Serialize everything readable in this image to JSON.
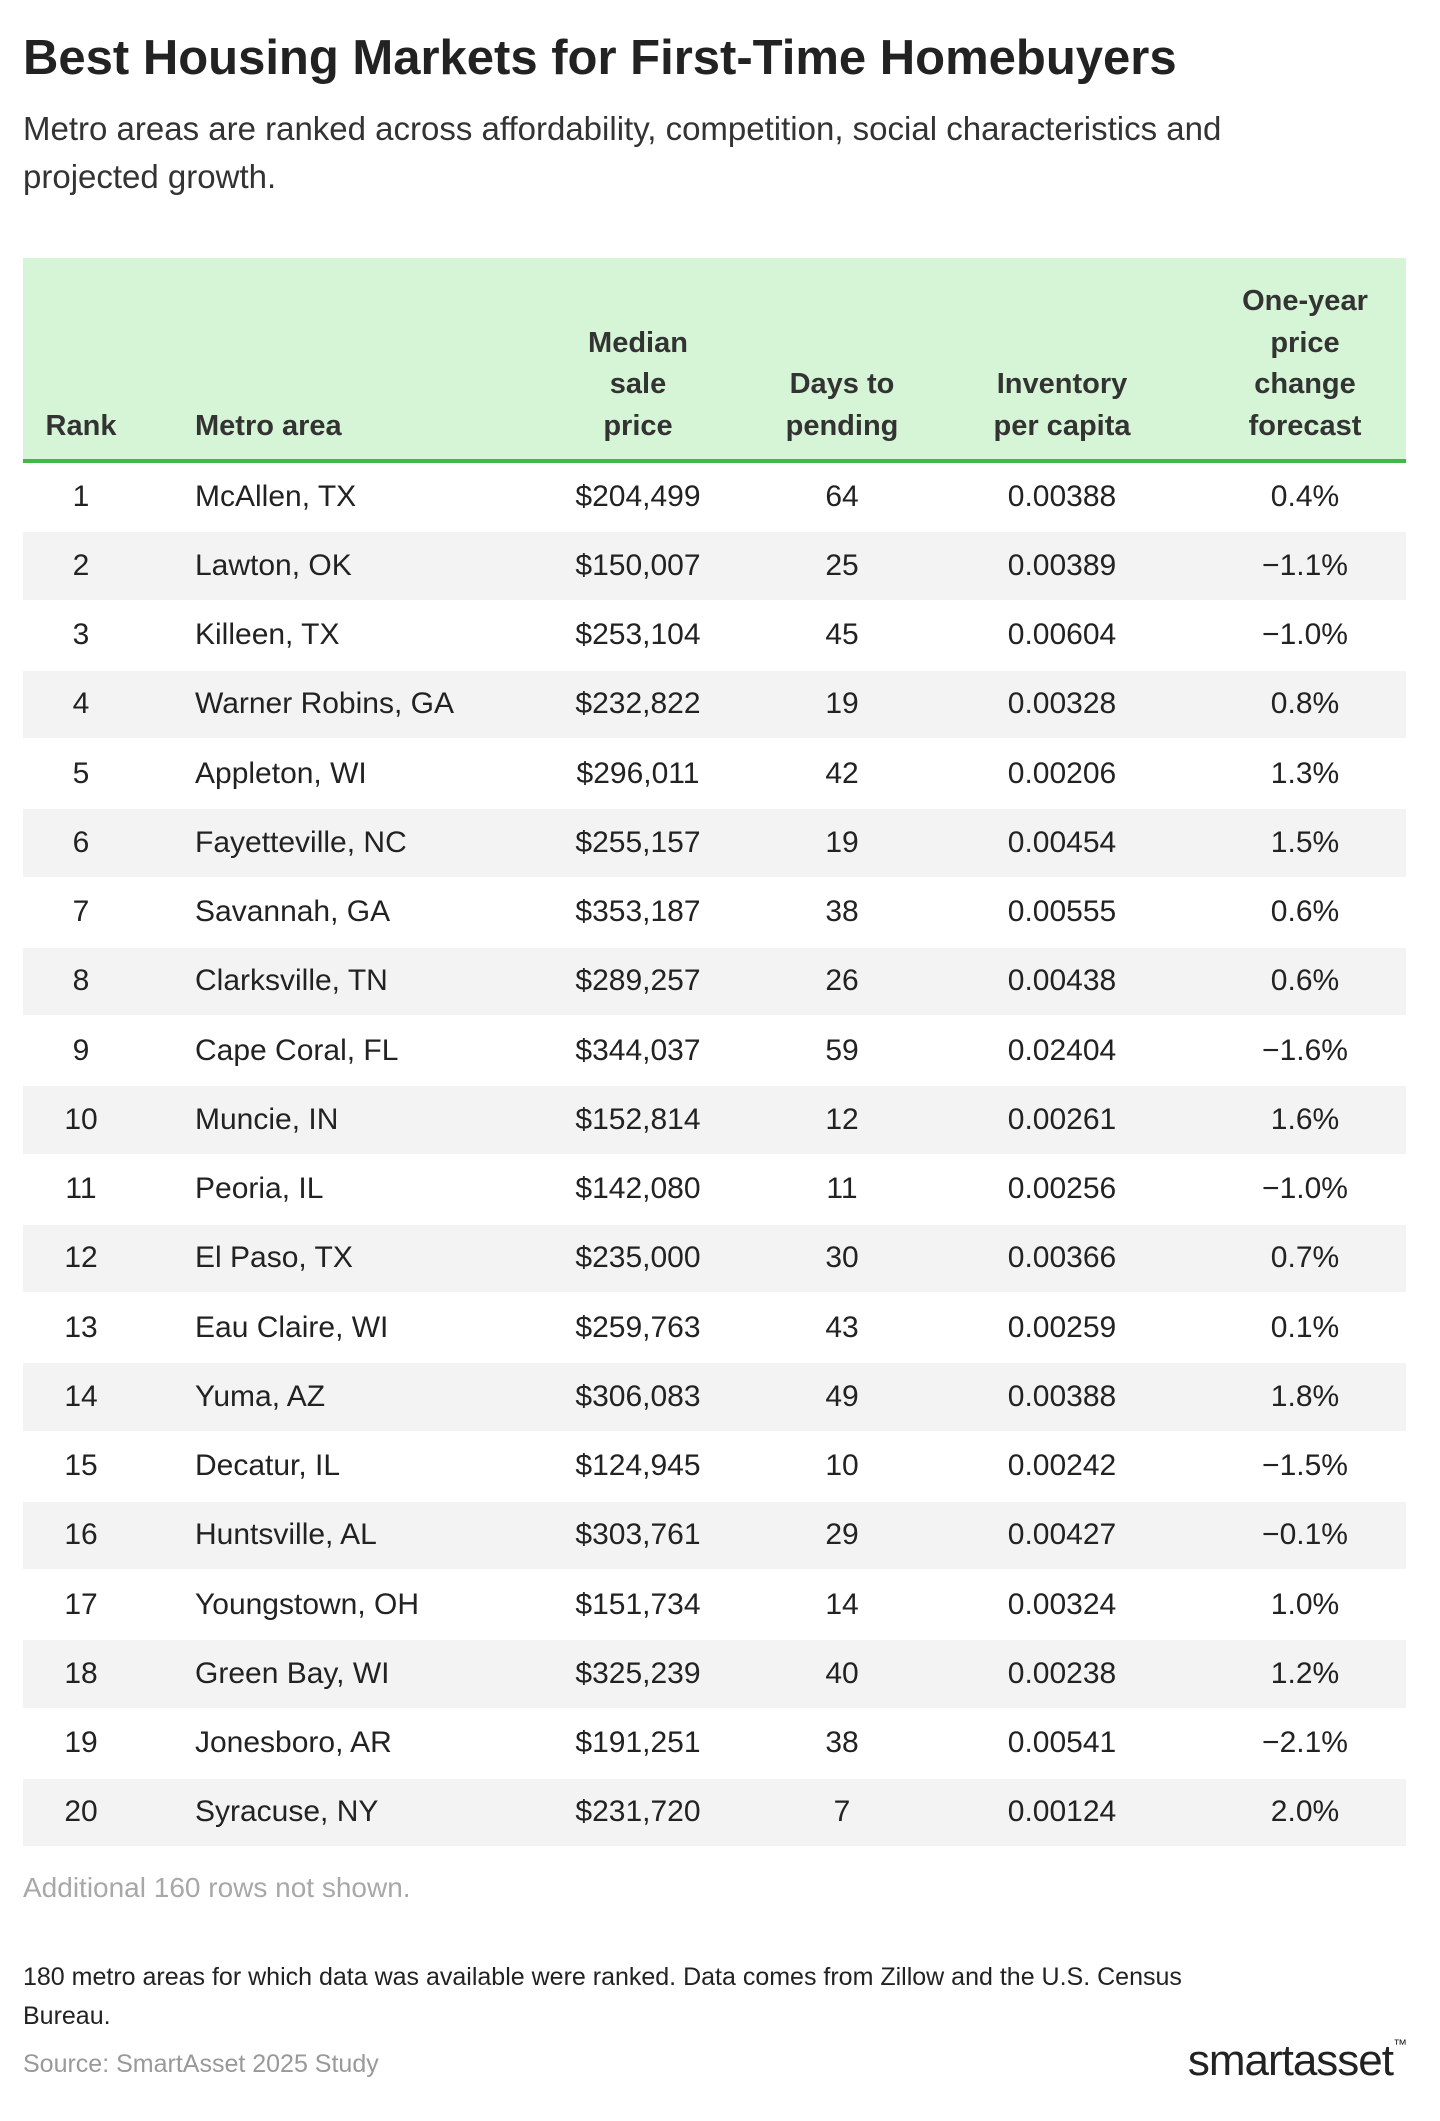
{
  "header": {
    "title": "Best Housing Markets for First-Time Homebuyers",
    "subtitle": "Metro areas are ranked across affordability, competition, social characteristics and projected growth."
  },
  "table": {
    "headers": [
      [
        "Rank"
      ],
      [
        "Metro area"
      ],
      [
        "Median",
        "sale",
        "price"
      ],
      [
        "Days to",
        "pending"
      ],
      [
        "Inventory",
        "per capita"
      ],
      [
        "One-year",
        "price",
        "change",
        "forecast"
      ]
    ],
    "rows": [
      [
        "1",
        "McAllen, TX",
        "$204,499",
        "64",
        "0.00388",
        "0.4%"
      ],
      [
        "2",
        "Lawton, OK",
        "$150,007",
        "25",
        "0.00389",
        "−1.1%"
      ],
      [
        "3",
        "Killeen, TX",
        "$253,104",
        "45",
        "0.00604",
        "−1.0%"
      ],
      [
        "4",
        "Warner Robins, GA",
        "$232,822",
        "19",
        "0.00328",
        "0.8%"
      ],
      [
        "5",
        "Appleton, WI",
        "$296,011",
        "42",
        "0.00206",
        "1.3%"
      ],
      [
        "6",
        "Fayetteville, NC",
        "$255,157",
        "19",
        "0.00454",
        "1.5%"
      ],
      [
        "7",
        "Savannah, GA",
        "$353,187",
        "38",
        "0.00555",
        "0.6%"
      ],
      [
        "8",
        "Clarksville, TN",
        "$289,257",
        "26",
        "0.00438",
        "0.6%"
      ],
      [
        "9",
        "Cape Coral, FL",
        "$344,037",
        "59",
        "0.02404",
        "−1.6%"
      ],
      [
        "10",
        "Muncie, IN",
        "$152,814",
        "12",
        "0.00261",
        "1.6%"
      ],
      [
        "11",
        "Peoria, IL",
        "$142,080",
        "11",
        "0.00256",
        "−1.0%"
      ],
      [
        "12",
        "El Paso, TX",
        "$235,000",
        "30",
        "0.00366",
        "0.7%"
      ],
      [
        "13",
        "Eau Claire, WI",
        "$259,763",
        "43",
        "0.00259",
        "0.1%"
      ],
      [
        "14",
        "Yuma, AZ",
        "$306,083",
        "49",
        "0.00388",
        "1.8%"
      ],
      [
        "15",
        "Decatur, IL",
        "$124,945",
        "10",
        "0.00242",
        "−1.5%"
      ],
      [
        "16",
        "Huntsville, AL",
        "$303,761",
        "29",
        "0.00427",
        "−0.1%"
      ],
      [
        "17",
        "Youngstown, OH",
        "$151,734",
        "14",
        "0.00324",
        "1.0%"
      ],
      [
        "18",
        "Green Bay, WI",
        "$325,239",
        "40",
        "0.00238",
        "1.2%"
      ],
      [
        "19",
        "Jonesboro, AR",
        "$191,251",
        "38",
        "0.00541",
        "−2.1%"
      ],
      [
        "20",
        "Syracuse, NY",
        "$231,720",
        "7",
        "0.00124",
        "2.0%"
      ]
    ],
    "more": "Additional 160 rows not shown."
  },
  "footer": {
    "note": "180 metro areas for which data was available were ranked. Data comes from Zillow and the U.S. Census Bureau.",
    "source": "Source: SmartAsset 2025 Study",
    "logo": "smartasset",
    "logo_mark": "™"
  }
}
